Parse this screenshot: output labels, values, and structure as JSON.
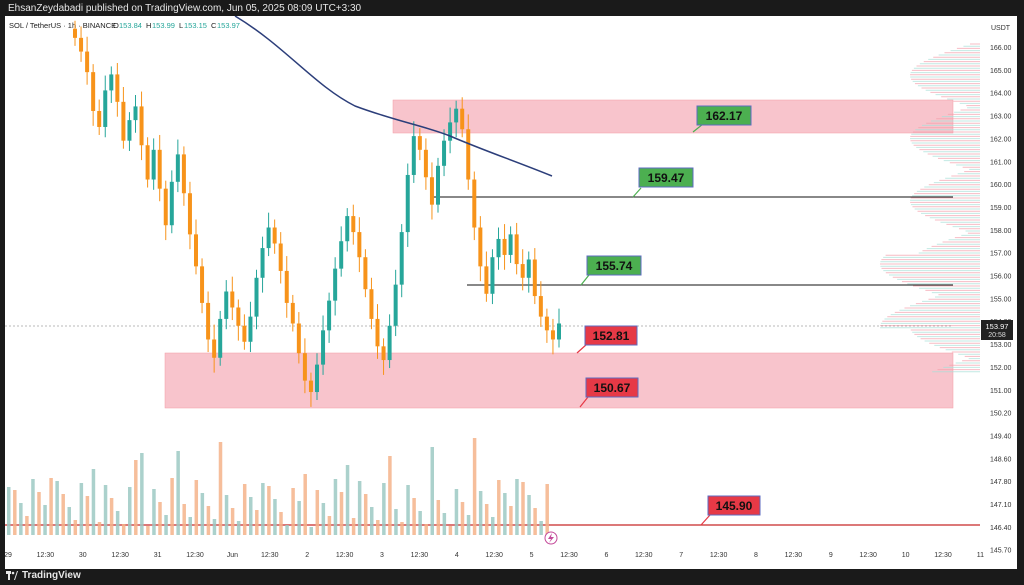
{
  "header": {
    "published_text": "EhsanZeydabadi published on TradingView.com, Jun 05, 2025 08:09 UTC+3:30"
  },
  "legend": {
    "symbol": "SOL / TetherUS · 1h · BINANCE",
    "o_label": "O",
    "o_value": "153.84",
    "h_label": "H",
    "h_value": "153.99",
    "l_label": "L",
    "l_value": "153.15",
    "c_label": "C",
    "c_value": "153.97"
  },
  "footer": {
    "brand": "TradingView"
  },
  "colors": {
    "up": "#f7931a",
    "down": "#f28e1c",
    "zone": "#f8c4cc",
    "zone_border": "#f49aa6",
    "green_label": "#4caf50",
    "red_label": "#e63946",
    "ma": "#2c3e7a"
  },
  "chart_data": {
    "type": "candlestick",
    "title": "SOL / TetherUS · 1h · BINANCE",
    "y_unit": "USDT",
    "y_range": [
      145.4,
      166.6
    ],
    "y_ticks": [
      "166.00",
      "165.00",
      "164.00",
      "163.00",
      "162.00",
      "161.00",
      "160.00",
      "159.00",
      "158.00",
      "157.00",
      "156.00",
      "155.00",
      "154.00",
      "153.00",
      "152.00",
      "151.00",
      "150.20",
      "149.40",
      "148.60",
      "147.80",
      "147.10",
      "146.40",
      "145.70"
    ],
    "x_ticks": [
      "29",
      "12:30",
      "30",
      "12:30",
      "31",
      "12:30",
      "Jun",
      "12:30",
      "2",
      "12:30",
      "3",
      "12:30",
      "4",
      "12:30",
      "5",
      "12:30",
      "6",
      "12:30",
      "7",
      "12:30",
      "8",
      "12:30",
      "9",
      "12:30",
      "10",
      "12:30",
      "11"
    ],
    "current_price": "153.97",
    "countdown": "20:58",
    "levels": [
      {
        "value": "162.17",
        "kind": "resistance",
        "color": "green"
      },
      {
        "value": "159.47",
        "kind": "line",
        "color": "green"
      },
      {
        "value": "155.74",
        "kind": "line",
        "color": "green"
      },
      {
        "value": "152.81",
        "kind": "support",
        "color": "red"
      },
      {
        "value": "150.67",
        "kind": "support",
        "color": "red"
      },
      {
        "value": "145.90",
        "kind": "volume-line",
        "color": "red"
      }
    ],
    "zones": [
      {
        "from": 162.2,
        "to": 163.6
      },
      {
        "from": 150.6,
        "to": 152.8
      }
    ],
    "close_series": [
      166.4,
      165.8,
      164.9,
      163.2,
      162.5,
      164.1,
      164.8,
      163.6,
      161.9,
      162.8,
      163.4,
      161.7,
      160.2,
      161.5,
      159.8,
      158.2,
      160.1,
      161.3,
      159.6,
      157.8,
      156.4,
      154.8,
      153.2,
      152.4,
      154.1,
      155.3,
      154.6,
      153.8,
      153.1,
      154.2,
      155.9,
      157.2,
      158.1,
      157.4,
      156.2,
      154.8,
      153.9,
      152.6,
      151.4,
      150.9,
      152.1,
      153.6,
      154.9,
      156.3,
      157.5,
      158.6,
      157.9,
      156.8,
      155.4,
      154.1,
      152.9,
      152.3,
      153.8,
      155.6,
      157.9,
      160.4,
      162.1,
      161.5,
      160.3,
      159.1,
      160.8,
      161.9,
      162.7,
      163.3,
      162.4,
      160.2,
      158.1,
      156.4,
      155.2,
      156.8,
      157.6,
      156.9,
      157.8,
      156.5,
      155.9,
      156.7,
      155.1,
      154.2,
      153.6,
      153.2,
      153.9
    ]
  }
}
